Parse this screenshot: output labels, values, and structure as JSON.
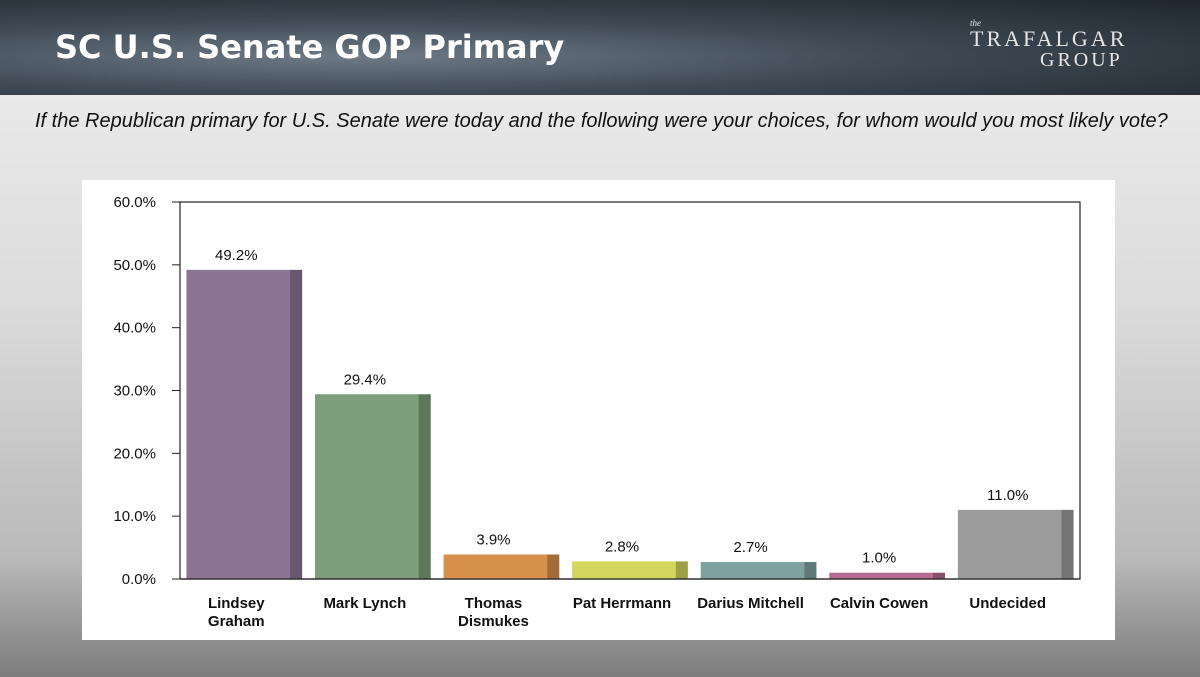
{
  "header": {
    "title": "SC U.S. Senate GOP Primary",
    "logo": {
      "small": "the",
      "line1": "TRAFALGAR",
      "line2": "GROUP"
    }
  },
  "question": "If the Republican primary for U.S. Senate were today and the following were your choices, for whom would you most likely vote?",
  "chart_data": {
    "type": "bar",
    "categories": [
      "Lindsey\nGraham",
      "Mark Lynch",
      "Thomas\nDismukes",
      "Pat Herrmann",
      "Darius Mitchell",
      "Calvin Cowen",
      "Undecided"
    ],
    "values": [
      49.2,
      29.4,
      3.9,
      2.8,
      2.7,
      1.0,
      11.0
    ],
    "value_labels": [
      "49.2%",
      "29.4%",
      "3.9%",
      "2.8%",
      "2.7%",
      "1.0%",
      "11.0%"
    ],
    "colors": [
      "#8b7594",
      "#7c9f7a",
      "#d8914a",
      "#d2d65c",
      "#7fa1a0",
      "#b56c93",
      "#9b9b9b"
    ],
    "ylim": [
      0,
      60
    ],
    "yticks": [
      {
        "value": 0,
        "label": "0.0%"
      },
      {
        "value": 10,
        "label": "10.0%"
      },
      {
        "value": 20,
        "label": "20.0%"
      },
      {
        "value": 30,
        "label": "30.0%"
      },
      {
        "value": 40,
        "label": "40.0%"
      },
      {
        "value": 50,
        "label": "50.0%"
      },
      {
        "value": 60,
        "label": "60.0%"
      }
    ]
  }
}
